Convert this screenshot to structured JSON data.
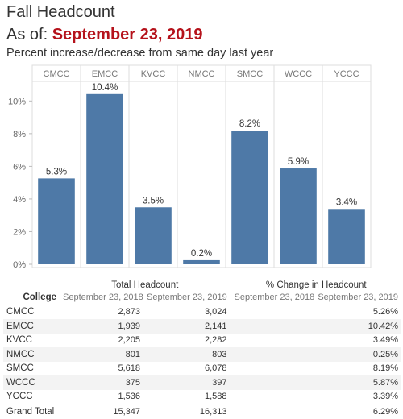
{
  "header": {
    "title": "Fall Headcount",
    "asof_label": "As of: ",
    "asof_date": "September 23, 2019",
    "subtitle": "Percent increase/decrease from same day last year"
  },
  "colors": {
    "bar": "#4e79a7",
    "accent": "#b5121b"
  },
  "chart_data": {
    "type": "bar",
    "categories": [
      "CMCC",
      "EMCC",
      "KVCC",
      "NMCC",
      "SMCC",
      "WCCC",
      "YCCC"
    ],
    "values": [
      5.26,
      10.42,
      3.49,
      0.25,
      8.19,
      5.87,
      3.39
    ],
    "value_labels": [
      "5.3%",
      "10.4%",
      "3.5%",
      "0.2%",
      "8.2%",
      "5.9%",
      "3.4%"
    ],
    "yticks": [
      "0%",
      "2%",
      "4%",
      "6%",
      "8%",
      "10%"
    ],
    "ylim": [
      0,
      11.2
    ],
    "grid": false
  },
  "table": {
    "row_header": "College",
    "group1": "Total Headcount",
    "group2": "% Change in Headcount",
    "col1": "September 23, 2018",
    "col2": "September 23, 2019",
    "col3": "September 23, 2018",
    "col4": "September 23, 2019",
    "rows": [
      {
        "college": "CMCC",
        "c2018": "2,873",
        "c2019": "3,024",
        "p2018": "",
        "p2019": "5.26%"
      },
      {
        "college": "EMCC",
        "c2018": "1,939",
        "c2019": "2,141",
        "p2018": "",
        "p2019": "10.42%"
      },
      {
        "college": "KVCC",
        "c2018": "2,205",
        "c2019": "2,282",
        "p2018": "",
        "p2019": "3.49%"
      },
      {
        "college": "NMCC",
        "c2018": "801",
        "c2019": "803",
        "p2018": "",
        "p2019": "0.25%"
      },
      {
        "college": "SMCC",
        "c2018": "5,618",
        "c2019": "6,078",
        "p2018": "",
        "p2019": "8.19%"
      },
      {
        "college": "WCCC",
        "c2018": "375",
        "c2019": "397",
        "p2018": "",
        "p2019": "5.87%"
      },
      {
        "college": "YCCC",
        "c2018": "1,536",
        "c2019": "1,588",
        "p2018": "",
        "p2019": "3.39%"
      }
    ],
    "total": {
      "college": "Grand Total",
      "c2018": "15,347",
      "c2019": "16,313",
      "p2018": "",
      "p2019": "6.29%"
    }
  }
}
